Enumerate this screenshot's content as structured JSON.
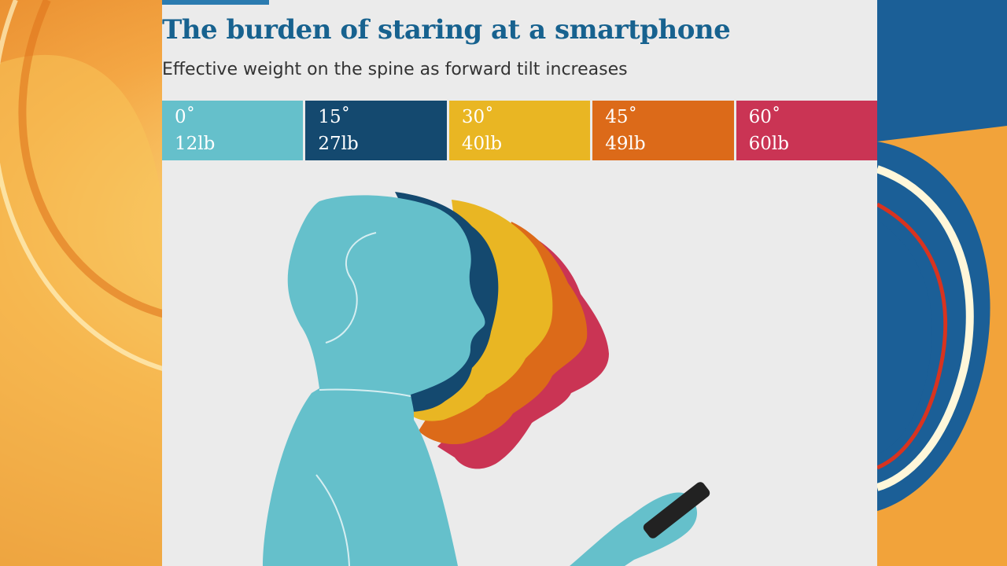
{
  "card": {
    "title": "The burden of staring at a smartphone",
    "subtitle": "Effective weight on the spine as forward tilt increases",
    "angles": [
      {
        "angle": "0˚",
        "weight": "12lb",
        "color": "#65c0cb"
      },
      {
        "angle": "15˚",
        "weight": "27lb",
        "color": "#14496f"
      },
      {
        "angle": "30˚",
        "weight": "40lb",
        "color": "#e9b623"
      },
      {
        "angle": "45˚",
        "weight": "49lb",
        "color": "#dc6a19"
      },
      {
        "angle": "60˚",
        "weight": "60lb",
        "color": "#ca3454"
      }
    ]
  },
  "colors": {
    "card_background": "#ebebeb",
    "title": "#17628f",
    "phone": "#222222",
    "backdrop_orange": "#f2a33a",
    "backdrop_blue": "#1b5f97"
  }
}
